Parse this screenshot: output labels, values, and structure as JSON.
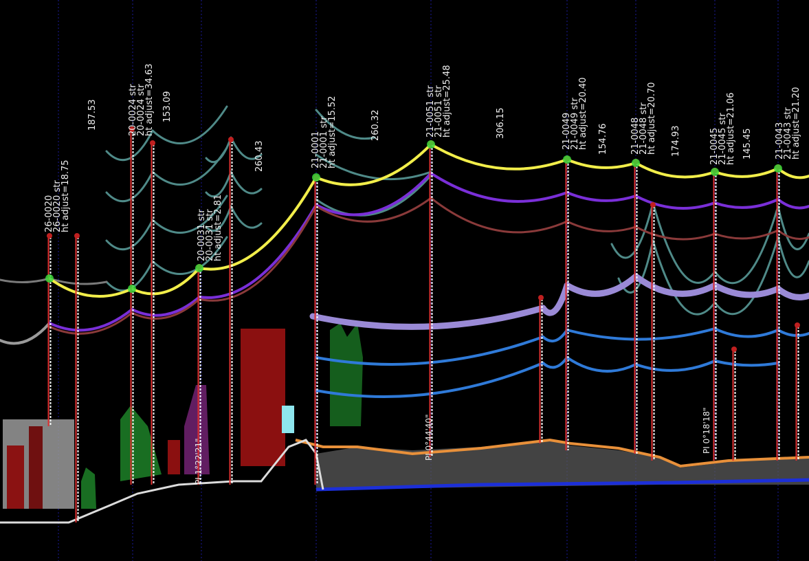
{
  "structures": [
    {
      "lines": [
        "26-0020",
        "26-0020 str",
        "ht adjust=18.75"
      ]
    },
    {
      "lines": [
        "20-0024 str",
        "20-0024 str",
        "ht adjust=34.63"
      ]
    },
    {
      "lines": [
        "20-0031 str",
        "20-0031 str",
        "ht adjust=2.81"
      ]
    },
    {
      "lines": [
        "21-0001",
        "21-0001 str",
        "ht adjust=15.52"
      ]
    },
    {
      "lines": [
        "21-0051 str",
        "21-0051 str",
        "ht adjust=25.48"
      ]
    },
    {
      "lines": [
        "21-0049",
        "21-0049 str",
        "ht adjust=20.40"
      ]
    },
    {
      "lines": [
        "21-0048",
        "21-0048 str",
        "ht adjust=20.70"
      ]
    },
    {
      "lines": [
        "21-0045",
        "21-0045 str",
        "ht adjust=21.06"
      ]
    },
    {
      "lines": [
        "21-0043",
        "21-0043 str",
        "ht adjust=21.20"
      ]
    }
  ],
  "spans": [
    "187.53",
    "153.09",
    "260.43",
    "260.32",
    "306.15",
    "154.76",
    "174.93",
    "145.45"
  ],
  "pi_labels": [
    "PI 1°22'21\"",
    "PI 0°44'40\"",
    "PI 0°18'18\""
  ]
}
